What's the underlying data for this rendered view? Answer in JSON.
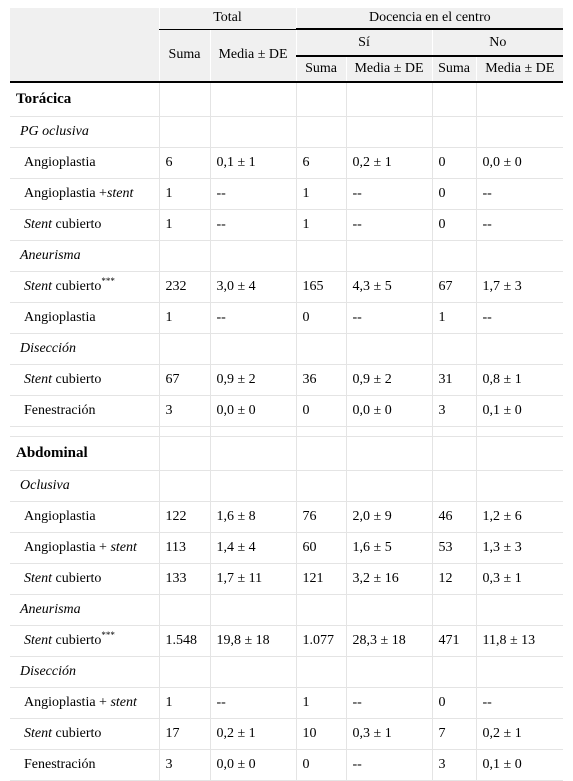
{
  "header": {
    "total": "Total",
    "docencia": "Docencia en el centro",
    "si": "Sí",
    "no": "No",
    "suma": "Suma",
    "media": "Media ± DE"
  },
  "sections": [
    {
      "name": "Torácica",
      "groups": [
        {
          "name": "PG oclusiva",
          "rows": [
            {
              "pre": "Angioplastia",
              "em": "",
              "post": "",
              "sup": "",
              "cells": [
                "6",
                "0,1 ± 1",
                "6",
                "0,2 ± 1",
                "0",
                "0,0 ± 0"
              ]
            },
            {
              "pre": "Angioplastia +",
              "em": "stent",
              "post": "",
              "sup": "",
              "cells": [
                "1",
                "--",
                "1",
                "--",
                "0",
                "--"
              ]
            },
            {
              "pre": "",
              "em": "Stent",
              "post": " cubierto",
              "sup": "",
              "cells": [
                "1",
                "--",
                "1",
                "--",
                "0",
                "--"
              ]
            }
          ]
        },
        {
          "name": "Aneurisma",
          "rows": [
            {
              "pre": "",
              "em": "Stent",
              "post": " cubierto",
              "sup": "***",
              "cells": [
                "232",
                "3,0 ± 4",
                "165",
                "4,3 ± 5",
                "67",
                "1,7 ± 3"
              ]
            },
            {
              "pre": "Angioplastia",
              "em": "",
              "post": "",
              "sup": "",
              "cells": [
                "1",
                "--",
                "0",
                "--",
                "1",
                "--"
              ]
            }
          ]
        },
        {
          "name": "Disección",
          "rows": [
            {
              "pre": "",
              "em": "Stent",
              "post": " cubierto",
              "sup": "",
              "cells": [
                "67",
                "0,9 ± 2",
                "36",
                "0,9 ± 2",
                "31",
                "0,8 ± 1"
              ]
            },
            {
              "pre": "Fenestración",
              "em": "",
              "post": "",
              "sup": "",
              "cells": [
                "3",
                "0,0 ± 0",
                "0",
                "0,0 ± 0",
                "3",
                "0,1 ± 0"
              ]
            }
          ]
        }
      ]
    },
    {
      "name": "Abdominal",
      "groups": [
        {
          "name": "Oclusiva",
          "rows": [
            {
              "pre": "Angioplastia",
              "em": "",
              "post": "",
              "sup": "",
              "cells": [
                "122",
                "1,6 ± 8",
                "76",
                "2,0 ± 9",
                "46",
                "1,2 ± 6"
              ]
            },
            {
              "pre": "Angioplastia + ",
              "em": "stent",
              "post": "",
              "sup": "",
              "cells": [
                "113",
                "1,4 ± 4",
                "60",
                "1,6 ± 5",
                "53",
                "1,3 ± 3"
              ]
            },
            {
              "pre": "",
              "em": "Stent",
              "post": " cubierto",
              "sup": "",
              "cells": [
                "133",
                "1,7 ± 11",
                "121",
                "3,2 ± 16",
                "12",
                "0,3 ± 1"
              ]
            }
          ]
        },
        {
          "name": "Aneurisma",
          "rows": [
            {
              "pre": "",
              "em": "Stent",
              "post": " cubierto",
              "sup": "***",
              "cells": [
                "1.548",
                "19,8 ± 18",
                "1.077",
                "28,3 ± 18",
                "471",
                "11,8 ± 13"
              ]
            }
          ]
        },
        {
          "name": "Disección",
          "rows": [
            {
              "pre": "Angioplastia + ",
              "em": "stent",
              "post": "",
              "sup": "",
              "cells": [
                "1",
                "--",
                "1",
                "--",
                "0",
                "--"
              ]
            },
            {
              "pre": "",
              "em": "Stent",
              "post": " cubierto",
              "sup": "",
              "cells": [
                "17",
                "0,2 ± 1",
                "10",
                "0,3 ± 1",
                "7",
                "0,2 ± 1"
              ]
            },
            {
              "pre": "Fenestración",
              "em": "",
              "post": "",
              "sup": "",
              "cells": [
                "3",
                "0,0 ± 0",
                "0",
                "--",
                "3",
                "0,1 ± 0"
              ]
            }
          ]
        }
      ]
    }
  ]
}
